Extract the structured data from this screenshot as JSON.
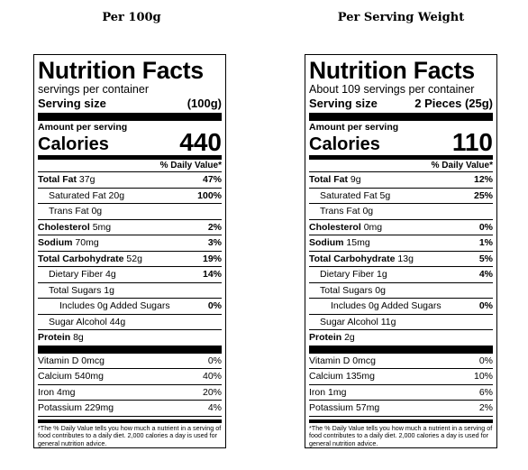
{
  "panels": [
    {
      "heading": "Per 100g",
      "title": "Nutrition Facts",
      "servings": "servings per container",
      "serving_size_label": "Serving size",
      "serving_size_value": "(100g)",
      "amount_label": "Amount per serving",
      "calories_label": "Calories",
      "calories_value": "440",
      "dv_header": "% Daily Value*",
      "rows": [
        {
          "label": "Total Fat",
          "amount": "37g",
          "dv": "47%",
          "bold": true,
          "indent": 0
        },
        {
          "label": "Saturated Fat",
          "amount": "20g",
          "dv": "100%",
          "bold": false,
          "indent": 1
        },
        {
          "label": "Trans Fat",
          "amount": "0g",
          "dv": "",
          "bold": false,
          "indent": 1
        },
        {
          "label": "Cholesterol",
          "amount": "5mg",
          "dv": "2%",
          "bold": true,
          "indent": 0
        },
        {
          "label": "Sodium",
          "amount": "70mg",
          "dv": "3%",
          "bold": true,
          "indent": 0
        },
        {
          "label": "Total Carbohydrate",
          "amount": "52g",
          "dv": "19%",
          "bold": true,
          "indent": 0
        },
        {
          "label": "Dietary Fiber",
          "amount": "4g",
          "dv": "14%",
          "bold": false,
          "indent": 1
        },
        {
          "label": "Total Sugars",
          "amount": "1g",
          "dv": "",
          "bold": false,
          "indent": 1
        },
        {
          "label": "Includes 0g Added Sugars",
          "amount": "",
          "dv": "0%",
          "bold": false,
          "indent": 2
        },
        {
          "label": "Sugar Alcohol",
          "amount": "44g",
          "dv": "",
          "bold": false,
          "indent": 1
        },
        {
          "label": "Protein",
          "amount": "8g",
          "dv": "",
          "bold": true,
          "indent": 0
        }
      ],
      "vitamins": [
        {
          "label": "Vitamin D",
          "amount": "0mcg",
          "dv": "0%"
        },
        {
          "label": "Calcium",
          "amount": "540mg",
          "dv": "40%"
        },
        {
          "label": "Iron",
          "amount": "4mg",
          "dv": "20%"
        },
        {
          "label": "Potassium",
          "amount": "229mg",
          "dv": "4%"
        }
      ],
      "footnote": "*The % Daily Value tells you how much a nutrient in a serving of food contributes to a daily diet. 2,000 calories a day is used for general nutrition advice."
    },
    {
      "heading": "Per Serving Weight",
      "title": "Nutrition Facts",
      "servings": "About 109 servings per container",
      "serving_size_label": "Serving size",
      "serving_size_value": "2 Pieces (25g)",
      "amount_label": "Amount per serving",
      "calories_label": "Calories",
      "calories_value": "110",
      "dv_header": "% Daily Value*",
      "rows": [
        {
          "label": "Total Fat",
          "amount": "9g",
          "dv": "12%",
          "bold": true,
          "indent": 0
        },
        {
          "label": "Saturated Fat",
          "amount": "5g",
          "dv": "25%",
          "bold": false,
          "indent": 1
        },
        {
          "label": "Trans Fat",
          "amount": "0g",
          "dv": "",
          "bold": false,
          "indent": 1
        },
        {
          "label": "Cholesterol",
          "amount": "0mg",
          "dv": "0%",
          "bold": true,
          "indent": 0
        },
        {
          "label": "Sodium",
          "amount": "15mg",
          "dv": "1%",
          "bold": true,
          "indent": 0
        },
        {
          "label": "Total Carbohydrate",
          "amount": "13g",
          "dv": "5%",
          "bold": true,
          "indent": 0
        },
        {
          "label": "Dietary Fiber",
          "amount": "1g",
          "dv": "4%",
          "bold": false,
          "indent": 1
        },
        {
          "label": "Total Sugars",
          "amount": "0g",
          "dv": "",
          "bold": false,
          "indent": 1
        },
        {
          "label": "Includes 0g Added Sugars",
          "amount": "",
          "dv": "0%",
          "bold": false,
          "indent": 2
        },
        {
          "label": "Sugar Alcohol",
          "amount": "11g",
          "dv": "",
          "bold": false,
          "indent": 1
        },
        {
          "label": "Protein",
          "amount": "2g",
          "dv": "",
          "bold": true,
          "indent": 0
        }
      ],
      "vitamins": [
        {
          "label": "Vitamin D",
          "amount": "0mcg",
          "dv": "0%"
        },
        {
          "label": "Calcium",
          "amount": "135mg",
          "dv": "10%"
        },
        {
          "label": "Iron",
          "amount": "1mg",
          "dv": "6%"
        },
        {
          "label": "Potassium",
          "amount": "57mg",
          "dv": "2%"
        }
      ],
      "footnote": "*The % Daily Value tells you how much a nutrient in a serving of food contributes to a daily diet. 2,000 calories a day is used for general nutrition advice."
    }
  ]
}
